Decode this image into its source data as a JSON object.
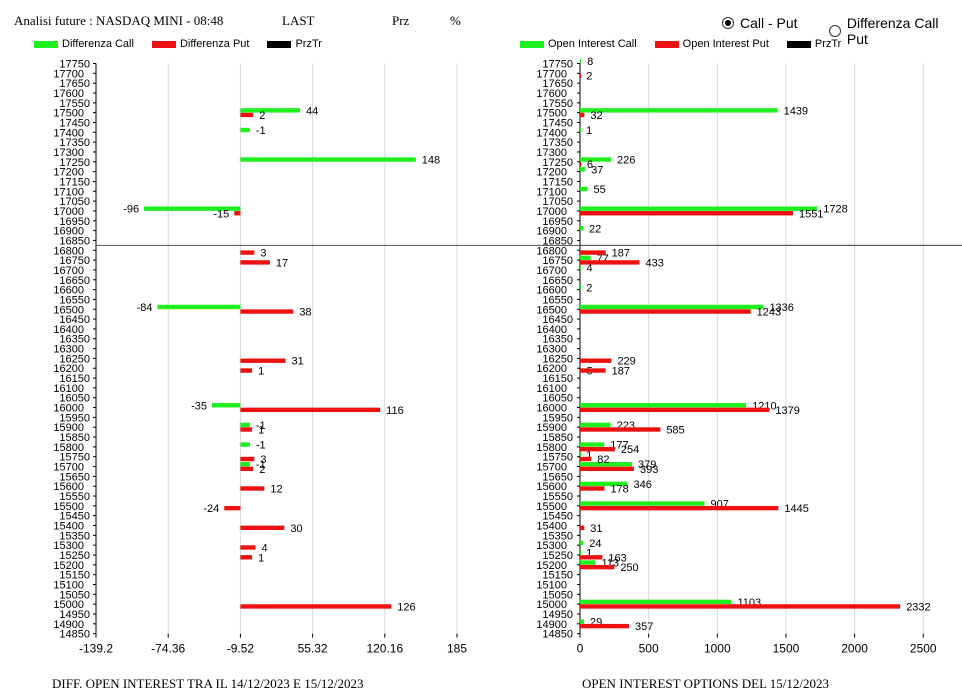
{
  "header": {
    "title": "Analisi future : NASDAQ MINI - 08:48",
    "last_label": "LAST",
    "prz_label": "Prz",
    "pct_label": "%",
    "radio_call_put": "Call - Put",
    "radio_diff": "Differenza Call Put",
    "radio_selected": "call_put"
  },
  "colors": {
    "call": "#1ef01e",
    "put": "#ee1111",
    "prztr": "#000000",
    "grid": "#d8d8d8",
    "last_line": "#555555"
  },
  "captions": {
    "left": "DIFF. OPEN INTEREST TRA IL 14/12/2023 E 15/12/2023",
    "right": "OPEN INTEREST OPTIONS DEL 15/12/2023"
  },
  "chart_data": [
    {
      "type": "bar",
      "orientation": "horizontal",
      "legend": [
        "Differenza Call",
        "Differenza Put",
        "PrzTr"
      ],
      "legend_placement": "top-left",
      "xlim": [
        -139.2,
        185
      ],
      "xticks": [
        "-139.2",
        "-74.36",
        "-9.52",
        "55.32",
        "120.16",
        "185"
      ],
      "grid": true,
      "zero": -9.52,
      "strikes_range": [
        14850,
        17750
      ],
      "strike_step": 50,
      "last_price_between": [
        16800,
        16850
      ],
      "series": [
        {
          "name": "Differenza Call",
          "points": [
            {
              "strike": 17500,
              "value": 44
            },
            {
              "strike": 17400,
              "value": -1
            },
            {
              "strike": 17250,
              "value": 148
            },
            {
              "strike": 17000,
              "value": -96
            },
            {
              "strike": 16500,
              "value": -84
            },
            {
              "strike": 16000,
              "value": -35
            },
            {
              "strike": 15900,
              "value": -1
            },
            {
              "strike": 15800,
              "value": -1
            },
            {
              "strike": 15700,
              "value": -1
            }
          ]
        },
        {
          "name": "Differenza Put",
          "points": [
            {
              "strike": 17500,
              "value": 2
            },
            {
              "strike": 17000,
              "value": -15
            },
            {
              "strike": 16800,
              "value": 3
            },
            {
              "strike": 16750,
              "value": 17
            },
            {
              "strike": 16500,
              "value": 38
            },
            {
              "strike": 16250,
              "value": 31
            },
            {
              "strike": 16200,
              "value": 1
            },
            {
              "strike": 16000,
              "value": 116
            },
            {
              "strike": 15900,
              "value": 1
            },
            {
              "strike": 15750,
              "value": 3
            },
            {
              "strike": 15700,
              "value": 2
            },
            {
              "strike": 15600,
              "value": 12
            },
            {
              "strike": 15500,
              "value": -24
            },
            {
              "strike": 15400,
              "value": 30
            },
            {
              "strike": 15300,
              "value": 4
            },
            {
              "strike": 15250,
              "value": 1
            },
            {
              "strike": 15000,
              "value": 126
            }
          ]
        }
      ]
    },
    {
      "type": "bar",
      "orientation": "horizontal",
      "legend": [
        "Open Interest Call",
        "Open Interest Put",
        "PrzTr"
      ],
      "legend_placement": "top-left",
      "xlim": [
        0,
        2600
      ],
      "xticks": [
        "0",
        "500",
        "1000",
        "1500",
        "2000",
        "2500"
      ],
      "grid": true,
      "zero": 0,
      "strikes_range": [
        14850,
        17750
      ],
      "strike_step": 50,
      "last_price_between": [
        16800,
        16850
      ],
      "series": [
        {
          "name": "Open Interest Call",
          "points": [
            {
              "strike": 17750,
              "value": 8
            },
            {
              "strike": 17500,
              "value": 1439
            },
            {
              "strike": 17400,
              "value": 1
            },
            {
              "strike": 17250,
              "value": 226
            },
            {
              "strike": 17200,
              "value": 37
            },
            {
              "strike": 17100,
              "value": 55
            },
            {
              "strike": 17000,
              "value": 1728
            },
            {
              "strike": 16900,
              "value": 22
            },
            {
              "strike": 16750,
              "value": 77
            },
            {
              "strike": 16700,
              "value": 4
            },
            {
              "strike": 16600,
              "value": 2
            },
            {
              "strike": 16500,
              "value": 1336
            },
            {
              "strike": 16000,
              "value": 1210
            },
            {
              "strike": 15900,
              "value": 223
            },
            {
              "strike": 15800,
              "value": 177
            },
            {
              "strike": 15750,
              "value": 1
            },
            {
              "strike": 15700,
              "value": 379
            },
            {
              "strike": 15600,
              "value": 346
            },
            {
              "strike": 15500,
              "value": 907
            },
            {
              "strike": 15300,
              "value": 24
            },
            {
              "strike": 15250,
              "value": 1
            },
            {
              "strike": 15200,
              "value": 113
            },
            {
              "strike": 15000,
              "value": 1103
            },
            {
              "strike": 14900,
              "value": 29
            }
          ]
        },
        {
          "name": "Open Interest Put",
          "points": [
            {
              "strike": 17700,
              "value": 2
            },
            {
              "strike": 17500,
              "value": 32
            },
            {
              "strike": 17250,
              "value": 6
            },
            {
              "strike": 17000,
              "value": 1551
            },
            {
              "strike": 16800,
              "value": 187
            },
            {
              "strike": 16750,
              "value": 433
            },
            {
              "strike": 16500,
              "value": 1243
            },
            {
              "strike": 16250,
              "value": 229
            },
            {
              "strike": 16200,
              "value": 5
            },
            {
              "strike": 16200,
              "value": 187
            },
            {
              "strike": 16000,
              "value": 1379
            },
            {
              "strike": 15900,
              "value": 585
            },
            {
              "strike": 15800,
              "value": 254
            },
            {
              "strike": 15750,
              "value": 82
            },
            {
              "strike": 15700,
              "value": 393
            },
            {
              "strike": 15600,
              "value": 178
            },
            {
              "strike": 15500,
              "value": 1445
            },
            {
              "strike": 15400,
              "value": 31
            },
            {
              "strike": 15250,
              "value": 163
            },
            {
              "strike": 15200,
              "value": 250
            },
            {
              "strike": 15000,
              "value": 2332
            },
            {
              "strike": 14900,
              "value": 357
            }
          ]
        }
      ]
    }
  ]
}
